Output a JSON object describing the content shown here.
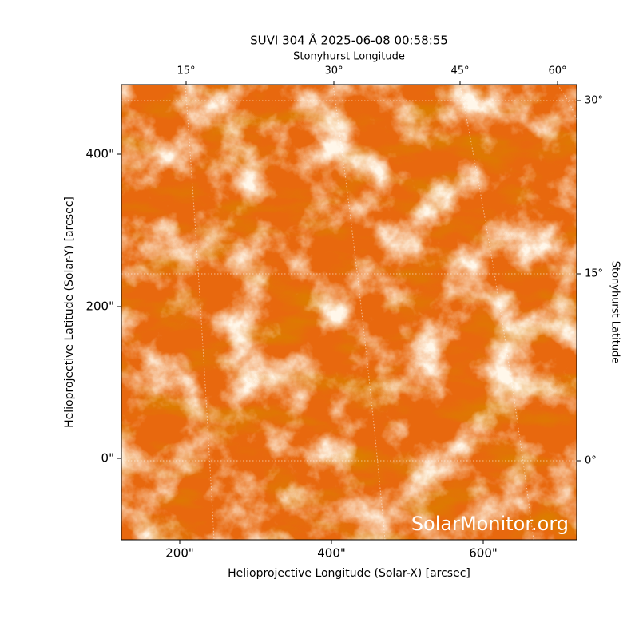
{
  "title": "SUVI 304 Å 2025-06-08 00:58:55",
  "top_axis_label": "Stonyhurst Longitude",
  "right_axis_label": "Stonyhurst Latitude",
  "x_axis_label": "Helioprojective Longitude (Solar-X) [arcsec]",
  "y_axis_label": "Helioprojective Latitude (Solar-Y) [arcsec]",
  "x_ticks": [
    "200\"",
    "400\"",
    "600\""
  ],
  "y_ticks": [
    "400\"",
    "200\"",
    "0\""
  ],
  "top_ticks": [
    "15°",
    "30°",
    "45°",
    "60°"
  ],
  "right_ticks": [
    "30°",
    "15°",
    "0°"
  ],
  "watermark": "SolarMonitor.org"
}
